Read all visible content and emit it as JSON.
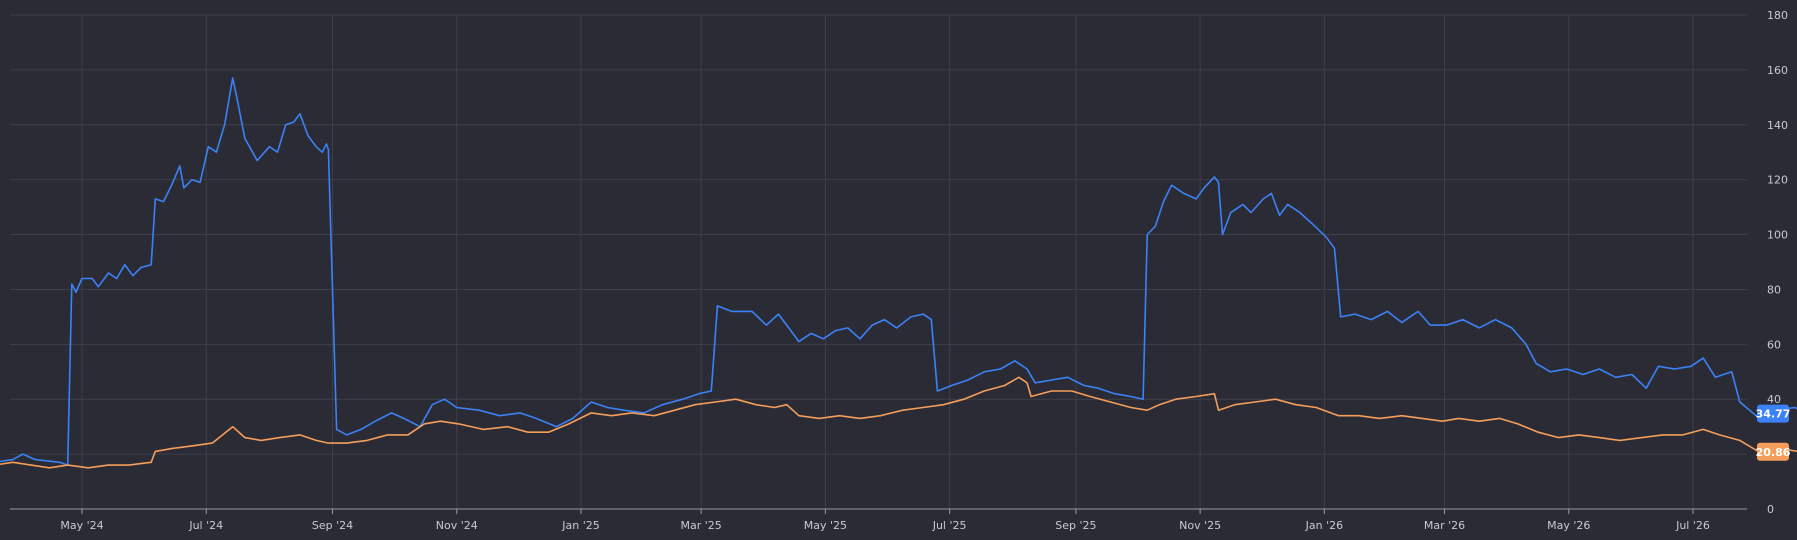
{
  "chart_data": {
    "type": "line",
    "title": "",
    "xlabel": "",
    "ylabel": "",
    "ylim": [
      0,
      180
    ],
    "y_ticks": [
      0,
      20,
      40,
      60,
      80,
      100,
      120,
      140,
      160,
      180
    ],
    "y_axis_position": "right",
    "grid": true,
    "legend": "none",
    "x_ticks": [
      {
        "date": "2024-05-01",
        "label": "May '24"
      },
      {
        "date": "2024-07-01",
        "label": "Jul '24"
      },
      {
        "date": "2024-09-01",
        "label": "Sep '24"
      },
      {
        "date": "2024-11-01",
        "label": "Nov '24"
      },
      {
        "date": "2025-01-01",
        "label": "Jan '25"
      },
      {
        "date": "2025-03-01",
        "label": "Mar '25"
      },
      {
        "date": "2025-05-01",
        "label": "May '25"
      },
      {
        "date": "2025-07-01",
        "label": "Jul '25"
      },
      {
        "date": "2025-09-01",
        "label": "Sep '25"
      },
      {
        "date": "2025-11-01",
        "label": "Nov '25"
      },
      {
        "date": "2026-01-01",
        "label": "Jan '26"
      },
      {
        "date": "2026-03-01",
        "label": "Mar '26"
      },
      {
        "date": "2026-05-01",
        "label": "May '26"
      },
      {
        "date": "2026-07-01",
        "label": "Jul '26"
      }
    ],
    "series": [
      {
        "color": "#3b82f6",
        "last_value_label": "34.77",
        "points": [
          [
            "2024-03-19",
            17
          ],
          [
            "2024-03-28",
            18
          ],
          [
            "2024-04-02",
            20
          ],
          [
            "2024-04-08",
            18
          ],
          [
            "2024-04-20",
            17
          ],
          [
            "2024-04-24",
            16
          ],
          [
            "2024-04-26",
            82
          ],
          [
            "2024-04-28",
            79
          ],
          [
            "2024-05-01",
            84
          ],
          [
            "2024-05-06",
            84
          ],
          [
            "2024-05-09",
            81
          ],
          [
            "2024-05-14",
            86
          ],
          [
            "2024-05-18",
            84
          ],
          [
            "2024-05-22",
            89
          ],
          [
            "2024-05-26",
            85
          ],
          [
            "2024-05-30",
            88
          ],
          [
            "2024-06-04",
            89
          ],
          [
            "2024-06-06",
            113
          ],
          [
            "2024-06-10",
            112
          ],
          [
            "2024-06-14",
            118
          ],
          [
            "2024-06-18",
            125
          ],
          [
            "2024-06-20",
            117
          ],
          [
            "2024-06-24",
            120
          ],
          [
            "2024-06-28",
            119
          ],
          [
            "2024-07-02",
            132
          ],
          [
            "2024-07-06",
            130
          ],
          [
            "2024-07-10",
            140
          ],
          [
            "2024-07-14",
            157
          ],
          [
            "2024-07-16",
            150
          ],
          [
            "2024-07-20",
            135
          ],
          [
            "2024-07-26",
            127
          ],
          [
            "2024-08-01",
            132
          ],
          [
            "2024-08-05",
            130
          ],
          [
            "2024-08-09",
            140
          ],
          [
            "2024-08-13",
            141
          ],
          [
            "2024-08-16",
            144
          ],
          [
            "2024-08-20",
            136
          ],
          [
            "2024-08-24",
            132
          ],
          [
            "2024-08-27",
            130
          ],
          [
            "2024-08-29",
            133
          ],
          [
            "2024-08-30",
            131
          ],
          [
            "2024-09-03",
            29
          ],
          [
            "2024-09-08",
            27
          ],
          [
            "2024-09-15",
            29
          ],
          [
            "2024-09-22",
            32
          ],
          [
            "2024-09-30",
            35
          ],
          [
            "2024-10-06",
            33
          ],
          [
            "2024-10-14",
            30
          ],
          [
            "2024-10-20",
            38
          ],
          [
            "2024-10-26",
            40
          ],
          [
            "2024-11-01",
            37
          ],
          [
            "2024-11-12",
            36
          ],
          [
            "2024-11-22",
            34
          ],
          [
            "2024-12-02",
            35
          ],
          [
            "2024-12-10",
            33
          ],
          [
            "2024-12-20",
            30
          ],
          [
            "2024-12-28",
            33
          ],
          [
            "2025-01-06",
            39
          ],
          [
            "2025-01-14",
            37
          ],
          [
            "2025-01-22",
            36
          ],
          [
            "2025-02-01",
            35
          ],
          [
            "2025-02-10",
            38
          ],
          [
            "2025-02-20",
            40
          ],
          [
            "2025-02-28",
            42
          ],
          [
            "2025-03-06",
            43
          ],
          [
            "2025-03-09",
            74
          ],
          [
            "2025-03-16",
            72
          ],
          [
            "2025-03-26",
            72
          ],
          [
            "2025-04-02",
            67
          ],
          [
            "2025-04-08",
            71
          ],
          [
            "2025-04-14",
            65
          ],
          [
            "2025-04-18",
            61
          ],
          [
            "2025-04-24",
            64
          ],
          [
            "2025-04-30",
            62
          ],
          [
            "2025-05-06",
            65
          ],
          [
            "2025-05-12",
            66
          ],
          [
            "2025-05-18",
            62
          ],
          [
            "2025-05-24",
            67
          ],
          [
            "2025-05-30",
            69
          ],
          [
            "2025-06-05",
            66
          ],
          [
            "2025-06-12",
            70
          ],
          [
            "2025-06-18",
            71
          ],
          [
            "2025-06-22",
            69
          ],
          [
            "2025-06-25",
            43
          ],
          [
            "2025-07-02",
            45
          ],
          [
            "2025-07-10",
            47
          ],
          [
            "2025-07-18",
            50
          ],
          [
            "2025-07-26",
            51
          ],
          [
            "2025-08-02",
            54
          ],
          [
            "2025-08-08",
            51
          ],
          [
            "2025-08-12",
            46
          ],
          [
            "2025-08-20",
            47
          ],
          [
            "2025-08-28",
            48
          ],
          [
            "2025-09-05",
            45
          ],
          [
            "2025-09-12",
            44
          ],
          [
            "2025-09-20",
            42
          ],
          [
            "2025-09-28",
            41
          ],
          [
            "2025-10-04",
            40
          ],
          [
            "2025-10-06",
            100
          ],
          [
            "2025-10-10",
            103
          ],
          [
            "2025-10-14",
            112
          ],
          [
            "2025-10-18",
            118
          ],
          [
            "2025-10-24",
            115
          ],
          [
            "2025-10-30",
            113
          ],
          [
            "2025-11-03",
            117
          ],
          [
            "2025-11-08",
            121
          ],
          [
            "2025-11-10",
            119
          ],
          [
            "2025-11-12",
            100
          ],
          [
            "2025-11-16",
            108
          ],
          [
            "2025-11-22",
            111
          ],
          [
            "2025-11-26",
            108
          ],
          [
            "2025-12-02",
            113
          ],
          [
            "2025-12-06",
            115
          ],
          [
            "2025-12-10",
            107
          ],
          [
            "2025-12-14",
            111
          ],
          [
            "2025-12-20",
            108
          ],
          [
            "2025-12-26",
            104
          ],
          [
            "2026-01-02",
            99
          ],
          [
            "2026-01-06",
            95
          ],
          [
            "2026-01-09",
            70
          ],
          [
            "2026-01-16",
            71
          ],
          [
            "2026-01-24",
            69
          ],
          [
            "2026-02-01",
            72
          ],
          [
            "2026-02-08",
            68
          ],
          [
            "2026-02-16",
            72
          ],
          [
            "2026-02-22",
            67
          ],
          [
            "2026-03-02",
            67
          ],
          [
            "2026-03-10",
            69
          ],
          [
            "2026-03-18",
            66
          ],
          [
            "2026-03-26",
            69
          ],
          [
            "2026-04-03",
            66
          ],
          [
            "2026-04-10",
            60
          ],
          [
            "2026-04-15",
            53
          ],
          [
            "2026-04-22",
            50
          ],
          [
            "2026-04-30",
            51
          ],
          [
            "2026-05-08",
            49
          ],
          [
            "2026-05-16",
            51
          ],
          [
            "2026-05-24",
            48
          ],
          [
            "2026-06-01",
            49
          ],
          [
            "2026-06-08",
            44
          ],
          [
            "2026-06-14",
            52
          ],
          [
            "2026-06-22",
            51
          ],
          [
            "2026-06-30",
            52
          ],
          [
            "2026-07-06",
            55
          ],
          [
            "2026-07-12",
            48
          ],
          [
            "2026-07-20",
            50
          ],
          [
            "2026-07-24",
            39
          ],
          [
            "2026-08-01",
            34
          ],
          [
            "2026-08-10",
            36
          ],
          [
            "2026-08-20",
            37
          ],
          [
            "2026-08-30",
            33
          ],
          [
            "2026-09-08",
            31
          ],
          [
            "2026-09-16",
            32
          ],
          [
            "2026-09-24",
            35
          ],
          [
            "2026-10-02",
            36
          ],
          [
            "2026-10-08",
            35
          ],
          [
            "2026-10-14",
            37
          ],
          [
            "2026-10-19",
            34.77
          ]
        ]
      },
      {
        "color": "#f59e5b",
        "last_value_label": "20.86",
        "points": [
          [
            "2024-03-19",
            16
          ],
          [
            "2024-03-28",
            17
          ],
          [
            "2024-04-06",
            16
          ],
          [
            "2024-04-15",
            15
          ],
          [
            "2024-04-24",
            16
          ],
          [
            "2024-05-04",
            15
          ],
          [
            "2024-05-14",
            16
          ],
          [
            "2024-05-24",
            16
          ],
          [
            "2024-06-04",
            17
          ],
          [
            "2024-06-06",
            21
          ],
          [
            "2024-06-14",
            22
          ],
          [
            "2024-06-24",
            23
          ],
          [
            "2024-07-04",
            24
          ],
          [
            "2024-07-14",
            30
          ],
          [
            "2024-07-20",
            26
          ],
          [
            "2024-07-28",
            25
          ],
          [
            "2024-08-06",
            26
          ],
          [
            "2024-08-16",
            27
          ],
          [
            "2024-08-24",
            25
          ],
          [
            "2024-08-30",
            24
          ],
          [
            "2024-09-08",
            24
          ],
          [
            "2024-09-18",
            25
          ],
          [
            "2024-09-28",
            27
          ],
          [
            "2024-10-08",
            27
          ],
          [
            "2024-10-16",
            31
          ],
          [
            "2024-10-24",
            32
          ],
          [
            "2024-11-02",
            31
          ],
          [
            "2024-11-14",
            29
          ],
          [
            "2024-11-26",
            30
          ],
          [
            "2024-12-06",
            28
          ],
          [
            "2024-12-16",
            28
          ],
          [
            "2024-12-26",
            31
          ],
          [
            "2025-01-06",
            35
          ],
          [
            "2025-01-16",
            34
          ],
          [
            "2025-01-26",
            35
          ],
          [
            "2025-02-06",
            34
          ],
          [
            "2025-02-16",
            36
          ],
          [
            "2025-02-26",
            38
          ],
          [
            "2025-03-08",
            39
          ],
          [
            "2025-03-18",
            40
          ],
          [
            "2025-03-28",
            38
          ],
          [
            "2025-04-06",
            37
          ],
          [
            "2025-04-12",
            38
          ],
          [
            "2025-04-18",
            34
          ],
          [
            "2025-04-28",
            33
          ],
          [
            "2025-05-08",
            34
          ],
          [
            "2025-05-18",
            33
          ],
          [
            "2025-05-28",
            34
          ],
          [
            "2025-06-08",
            36
          ],
          [
            "2025-06-18",
            37
          ],
          [
            "2025-06-28",
            38
          ],
          [
            "2025-07-08",
            40
          ],
          [
            "2025-07-18",
            43
          ],
          [
            "2025-07-28",
            45
          ],
          [
            "2025-08-04",
            48
          ],
          [
            "2025-08-08",
            46
          ],
          [
            "2025-08-10",
            41
          ],
          [
            "2025-08-20",
            43
          ],
          [
            "2025-08-30",
            43
          ],
          [
            "2025-09-08",
            41
          ],
          [
            "2025-09-18",
            39
          ],
          [
            "2025-09-28",
            37
          ],
          [
            "2025-10-06",
            36
          ],
          [
            "2025-10-12",
            38
          ],
          [
            "2025-10-20",
            40
          ],
          [
            "2025-10-30",
            41
          ],
          [
            "2025-11-08",
            42
          ],
          [
            "2025-11-10",
            36
          ],
          [
            "2025-11-18",
            38
          ],
          [
            "2025-11-28",
            39
          ],
          [
            "2025-12-08",
            40
          ],
          [
            "2025-12-18",
            38
          ],
          [
            "2025-12-28",
            37
          ],
          [
            "2026-01-08",
            34
          ],
          [
            "2026-01-18",
            34
          ],
          [
            "2026-01-28",
            33
          ],
          [
            "2026-02-08",
            34
          ],
          [
            "2026-02-18",
            33
          ],
          [
            "2026-02-28",
            32
          ],
          [
            "2026-03-08",
            33
          ],
          [
            "2026-03-18",
            32
          ],
          [
            "2026-03-28",
            33
          ],
          [
            "2026-04-06",
            31
          ],
          [
            "2026-04-16",
            28
          ],
          [
            "2026-04-26",
            26
          ],
          [
            "2026-05-06",
            27
          ],
          [
            "2026-05-16",
            26
          ],
          [
            "2026-05-26",
            25
          ],
          [
            "2026-06-06",
            26
          ],
          [
            "2026-06-16",
            27
          ],
          [
            "2026-06-26",
            27
          ],
          [
            "2026-07-06",
            29
          ],
          [
            "2026-07-14",
            27
          ],
          [
            "2026-07-24",
            25
          ],
          [
            "2026-08-02",
            21
          ],
          [
            "2026-08-12",
            22
          ],
          [
            "2026-08-22",
            21
          ],
          [
            "2026-09-01",
            19
          ],
          [
            "2026-09-10",
            18
          ],
          [
            "2026-09-20",
            19
          ],
          [
            "2026-09-30",
            21
          ],
          [
            "2026-10-08",
            22
          ],
          [
            "2026-10-14",
            21
          ],
          [
            "2026-10-19",
            20.86
          ]
        ]
      }
    ]
  }
}
